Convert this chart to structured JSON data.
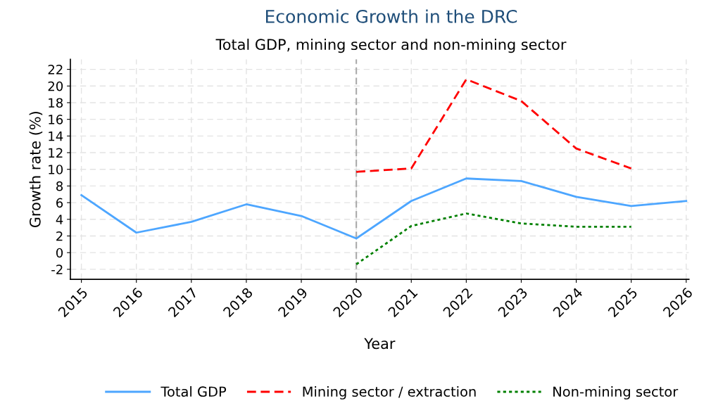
{
  "chart_data": {
    "type": "line",
    "title": "Economic Growth in the DRC",
    "subtitle": "Total GDP, mining sector and non-mining sector",
    "xlabel": "Year",
    "ylabel": "Growth rate (%)",
    "x": [
      2015,
      2016,
      2017,
      2018,
      2019,
      2020,
      2021,
      2022,
      2023,
      2024,
      2025,
      2026
    ],
    "series": [
      {
        "name": "Total GDP",
        "color": "#4da6ff",
        "line_style": "solid",
        "values": [
          6.9,
          2.4,
          3.7,
          5.8,
          4.4,
          1.7,
          6.2,
          8.9,
          8.6,
          6.7,
          5.6,
          6.2
        ]
      },
      {
        "name": "Mining sector / extraction",
        "color": "#ff0000",
        "line_style": "dashed",
        "values": [
          null,
          null,
          null,
          null,
          null,
          9.7,
          10.1,
          20.8,
          18.2,
          12.5,
          10.1,
          null
        ]
      },
      {
        "name": "Non-mining sector",
        "color": "#008000",
        "line_style": "dotted",
        "values": [
          null,
          null,
          null,
          null,
          null,
          -1.4,
          3.2,
          4.7,
          3.5,
          3.1,
          3.1,
          null
        ]
      }
    ],
    "xlim": [
      2014.8,
      2026.05
    ],
    "xticks": [
      2015,
      2016,
      2017,
      2018,
      2019,
      2020,
      2021,
      2022,
      2023,
      2024,
      2025,
      2026
    ],
    "ylim": [
      -3.2,
      23.2
    ],
    "yticks": [
      -2,
      0,
      2,
      4,
      6,
      8,
      10,
      12,
      14,
      16,
      18,
      20,
      22
    ],
    "ref_lines": [
      {
        "axis": "x",
        "value": 2020,
        "color": "#aaaaaa",
        "line_style": "dashed"
      }
    ],
    "grid": true,
    "legend": "bottom"
  }
}
